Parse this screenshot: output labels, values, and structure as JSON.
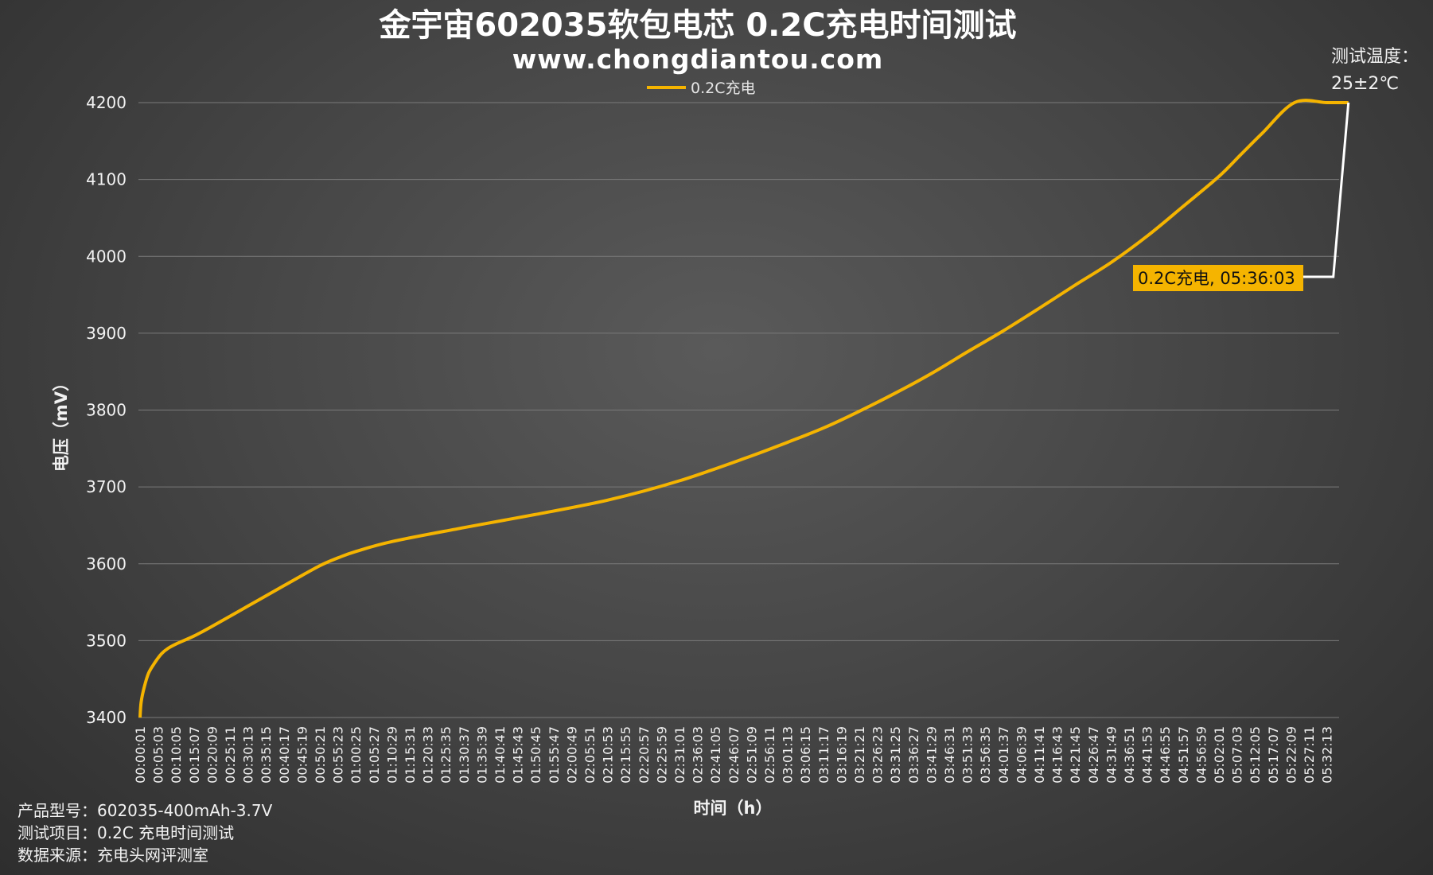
{
  "chart_data": {
    "type": "line",
    "title": "金宇宙602035软包电芯 0.2C充电时间测试",
    "subtitle": "www.chongdiantou.com",
    "xlabel": "时间（h）",
    "ylabel": "电压（mV）",
    "ylim": [
      3400,
      4200
    ],
    "yticks": [
      "4200",
      "4100",
      "4000",
      "3900",
      "3800",
      "3700",
      "3600",
      "3500",
      "3400"
    ],
    "grid": true,
    "legend_position": "top-center",
    "line_color": "#F5B400",
    "x_tick_labels": [
      "00:00:01",
      "00:05:03",
      "00:10:05",
      "00:15:07",
      "00:20:09",
      "00:25:11",
      "00:30:13",
      "00:35:15",
      "00:40:17",
      "00:45:19",
      "00:50:21",
      "00:55:23",
      "01:00:25",
      "01:05:27",
      "01:10:29",
      "01:15:31",
      "01:20:33",
      "01:25:35",
      "01:30:37",
      "01:35:39",
      "01:40:41",
      "01:45:43",
      "01:50:45",
      "01:55:47",
      "02:00:49",
      "02:05:51",
      "02:10:53",
      "02:15:55",
      "02:20:57",
      "02:25:59",
      "02:31:01",
      "02:36:03",
      "02:41:05",
      "02:46:07",
      "02:51:09",
      "02:56:11",
      "03:01:13",
      "03:06:15",
      "03:11:17",
      "03:16:19",
      "03:21:21",
      "03:26:23",
      "03:31:25",
      "03:36:27",
      "03:41:29",
      "03:46:31",
      "03:51:33",
      "03:56:35",
      "04:01:37",
      "04:06:39",
      "04:11:41",
      "04:16:43",
      "04:21:45",
      "04:26:47",
      "04:31:49",
      "04:36:51",
      "04:41:53",
      "04:46:55",
      "04:51:57",
      "04:56:59",
      "05:02:01",
      "05:07:03",
      "05:12:05",
      "05:17:07",
      "05:22:09",
      "05:27:11",
      "05:32:13"
    ],
    "series": [
      {
        "name": "0.2C充电",
        "x_hours": [
          0.0,
          0.005,
          0.02,
          0.04,
          0.07,
          0.1,
          0.13,
          0.17,
          0.25,
          0.33,
          0.5,
          0.67,
          0.83,
          0.92,
          1.0,
          1.17,
          1.5,
          1.83,
          2.17,
          2.5,
          2.83,
          3.0,
          3.17,
          3.33,
          3.5,
          3.67,
          3.83,
          4.0,
          4.17,
          4.33,
          4.5,
          4.67,
          4.83,
          5.0,
          5.1,
          5.2,
          5.35,
          5.5,
          5.6
        ],
        "y_mV": [
          3400,
          3420,
          3440,
          3458,
          3472,
          3483,
          3490,
          3496,
          3506,
          3518,
          3545,
          3572,
          3597,
          3608,
          3616,
          3629,
          3647,
          3664,
          3683,
          3708,
          3740,
          3758,
          3777,
          3798,
          3822,
          3848,
          3875,
          3903,
          3933,
          3962,
          3992,
          4027,
          4064,
          4104,
          4132,
          4160,
          4200,
          4200,
          4200
        ]
      }
    ],
    "annotation": {
      "label": "0.2C充电, 05:36:03",
      "point_x_hours": 5.6,
      "point_y_mV": 4200
    }
  },
  "side_note": {
    "line1": "测试温度：",
    "line2": "25±2℃"
  },
  "footer": {
    "line1": "产品型号：602035-400mAh-3.7V",
    "line2": "测试项目：0.2C 充电时间测试",
    "line3": "数据来源：充电头网评测室"
  }
}
